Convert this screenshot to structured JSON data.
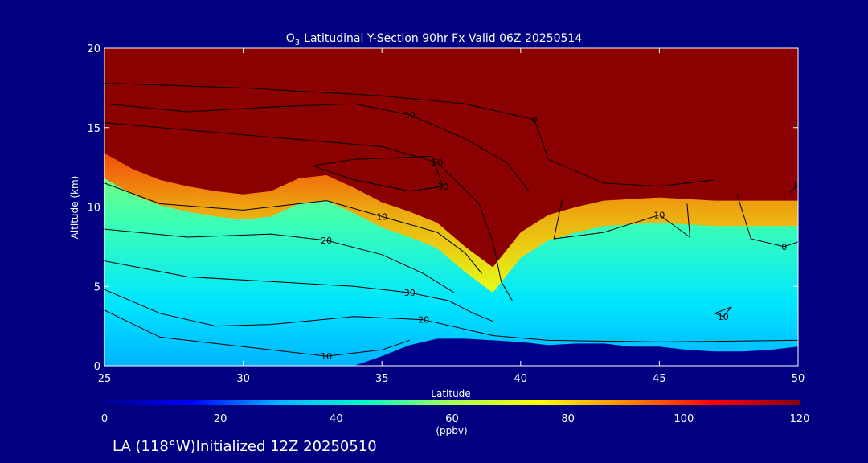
{
  "chart_data": {
    "type": "heatmap",
    "title": "Latitudinal Y-Section 90hr  Fx Valid 06Z 20250514",
    "title_species": "O",
    "title_subscript": "3",
    "xlabel": "Latitude",
    "ylabel": "Altitude (km)",
    "xlim": [
      25,
      50
    ],
    "ylim": [
      0,
      20
    ],
    "x_ticks": [
      25,
      30,
      35,
      40,
      45,
      50
    ],
    "y_ticks": [
      0,
      5,
      10,
      15,
      20
    ],
    "grid": false,
    "colorbar": {
      "min": 0,
      "max": 120,
      "ticks": [
        0,
        20,
        40,
        60,
        80,
        100,
        120
      ],
      "unit": "(ppbv)",
      "colors": [
        "#00008b",
        "#0000ff",
        "#00b4ff",
        "#00ffc8",
        "#a8ff50",
        "#ffff00",
        "#ff8c00",
        "#ff0000",
        "#8b0000"
      ]
    },
    "x": [
      25,
      26,
      27,
      28,
      29,
      30,
      31,
      32,
      33,
      34,
      35,
      36,
      37,
      38,
      39,
      40,
      41,
      42,
      43,
      44,
      45,
      46,
      47,
      48,
      49,
      50
    ],
    "tropopause_km": [
      13.4,
      12.4,
      11.7,
      11.3,
      11.0,
      10.8,
      11.0,
      11.8,
      12.0,
      11.2,
      10.3,
      9.7,
      9.0,
      7.5,
      6.2,
      8.4,
      9.5,
      10.0,
      10.4,
      10.5,
      10.6,
      10.5,
      10.4,
      10.4,
      10.4,
      10.4
    ],
    "surface_km": [
      0.0,
      0.0,
      0.0,
      0.0,
      0.0,
      0.0,
      0.0,
      0.0,
      0.0,
      0.0,
      0.6,
      1.3,
      1.7,
      1.7,
      1.6,
      1.5,
      1.3,
      1.4,
      1.4,
      1.2,
      1.2,
      1.0,
      0.9,
      0.9,
      1.0,
      1.2
    ],
    "contour_labels": [
      "10",
      "20",
      "30",
      "20",
      "10",
      "20",
      "30",
      "10",
      "0",
      "10",
      "10",
      "0",
      "10"
    ],
    "contours": [
      [
        [
          25,
          11.5
        ],
        [
          27,
          10.2
        ],
        [
          30,
          9.8
        ],
        [
          33,
          10.4
        ],
        [
          35,
          9.4
        ],
        [
          37,
          8.4
        ],
        [
          38,
          7.1
        ],
        [
          38.6,
          5.8
        ]
      ],
      [
        [
          25,
          8.6
        ],
        [
          28,
          8.1
        ],
        [
          31,
          8.3
        ],
        [
          33,
          7.9
        ],
        [
          35,
          7.0
        ],
        [
          36.5,
          5.8
        ],
        [
          37.6,
          4.6
        ]
      ],
      [
        [
          25,
          6.6
        ],
        [
          28,
          5.6
        ],
        [
          31,
          5.3
        ],
        [
          34,
          5.0
        ],
        [
          36,
          4.6
        ],
        [
          37.4,
          4.1
        ],
        [
          38.3,
          3.3
        ],
        [
          39,
          2.8
        ]
      ],
      [
        [
          25,
          4.8
        ],
        [
          27,
          3.3
        ],
        [
          29,
          2.5
        ],
        [
          31,
          2.6
        ],
        [
          34,
          3.1
        ],
        [
          36.5,
          2.9
        ],
        [
          39,
          1.9
        ],
        [
          41,
          1.6
        ],
        [
          45,
          1.5
        ],
        [
          50,
          1.6
        ]
      ],
      [
        [
          25,
          3.5
        ],
        [
          27,
          1.8
        ],
        [
          30,
          1.2
        ],
        [
          33,
          0.6
        ],
        [
          35,
          1.0
        ],
        [
          36,
          1.6
        ]
      ],
      [
        [
          25,
          15.3
        ],
        [
          29,
          14.7
        ],
        [
          31,
          14.4
        ],
        [
          33,
          14.1
        ],
        [
          35,
          13.8
        ],
        [
          37,
          12.8
        ],
        [
          38.5,
          10.2
        ],
        [
          39,
          7.8
        ],
        [
          39.3,
          5.3
        ],
        [
          39.7,
          4.1
        ]
      ],
      [
        [
          32.5,
          12.6
        ],
        [
          34,
          11.7
        ],
        [
          36,
          11.0
        ],
        [
          37.2,
          11.3
        ],
        [
          36.8,
          13.2
        ],
        [
          34,
          13.0
        ],
        [
          32.5,
          12.6
        ]
      ],
      [
        [
          25,
          16.5
        ],
        [
          28,
          16.0
        ],
        [
          31,
          16.3
        ],
        [
          34,
          16.5
        ],
        [
          36,
          15.8
        ],
        [
          38,
          14.3
        ],
        [
          39.5,
          12.8
        ],
        [
          40.3,
          11.0
        ]
      ],
      [
        [
          25,
          17.8
        ],
        [
          30,
          17.5
        ],
        [
          35,
          17.0
        ],
        [
          38,
          16.5
        ],
        [
          40.5,
          15.5
        ],
        [
          41,
          13.0
        ],
        [
          43,
          11.5
        ],
        [
          45,
          11.3
        ],
        [
          47,
          11.7
        ]
      ],
      [
        [
          41.5,
          10.5
        ],
        [
          41.2,
          8.0
        ],
        [
          43,
          8.4
        ],
        [
          45,
          9.5
        ],
        [
          46.1,
          8.1
        ],
        [
          46.0,
          10.2
        ]
      ],
      [
        [
          49.7,
          10.9
        ],
        [
          50,
          11.4
        ]
      ],
      [
        [
          47.8,
          10.8
        ],
        [
          48.3,
          8.0
        ],
        [
          49.5,
          7.5
        ],
        [
          50,
          7.8
        ]
      ],
      [
        [
          47.0,
          3.3
        ],
        [
          47.6,
          3.7
        ],
        [
          47.3,
          3.1
        ],
        [
          47.0,
          3.3
        ]
      ]
    ]
  },
  "footer": {
    "location": "LA (118°W)Initialized 12Z 20250510"
  }
}
